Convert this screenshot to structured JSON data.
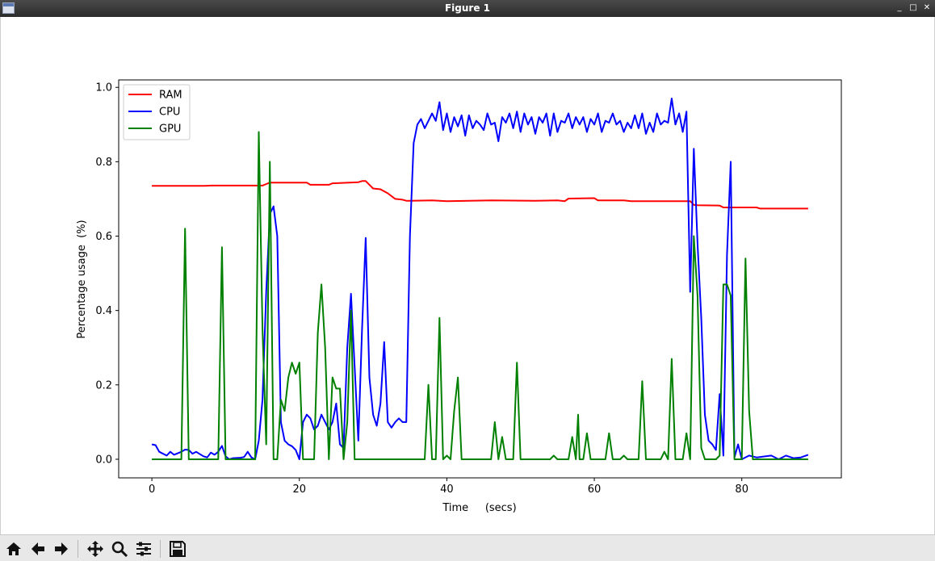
{
  "window": {
    "title": "Figure 1"
  },
  "toolbar": {
    "buttons": [
      {
        "name": "home-icon"
      },
      {
        "name": "back-arrow-icon"
      },
      {
        "name": "forward-arrow-icon"
      },
      {
        "name": "pan-icon"
      },
      {
        "name": "zoom-icon"
      },
      {
        "name": "configure-subplots-icon"
      },
      {
        "name": "save-icon"
      }
    ]
  },
  "colors": {
    "RAM": "#ff0000",
    "CPU": "#0000ff",
    "GPU": "#008000"
  },
  "chart_data": {
    "type": "line",
    "xlabel": "Time     (secs)",
    "ylabel": "Percentage usage  (%)",
    "xlim": [
      -4.5,
      93.5
    ],
    "ylim": [
      -0.05,
      1.02
    ],
    "xticks": [
      0,
      20,
      40,
      60,
      80
    ],
    "yticks": [
      0.0,
      0.2,
      0.4,
      0.6,
      0.8,
      1.0
    ],
    "ytick_labels": [
      "0.0",
      "0.2",
      "0.4",
      "0.6",
      "0.8",
      "1.0"
    ],
    "legend_position": "upper-left",
    "series": [
      {
        "name": "RAM",
        "color": "#ff0000",
        "points": [
          [
            0,
            0.735
          ],
          [
            7,
            0.735
          ],
          [
            8,
            0.736
          ],
          [
            15,
            0.736
          ],
          [
            15.5,
            0.74
          ],
          [
            16,
            0.744
          ],
          [
            21,
            0.744
          ],
          [
            21.5,
            0.738
          ],
          [
            24,
            0.738
          ],
          [
            24.5,
            0.742
          ],
          [
            28,
            0.745
          ],
          [
            28.5,
            0.748
          ],
          [
            29,
            0.748
          ],
          [
            29.5,
            0.738
          ],
          [
            30,
            0.728
          ],
          [
            31,
            0.726
          ],
          [
            32,
            0.715
          ],
          [
            33,
            0.7
          ],
          [
            34,
            0.698
          ],
          [
            34.5,
            0.695
          ],
          [
            35,
            0.695
          ],
          [
            38,
            0.696
          ],
          [
            40,
            0.694
          ],
          [
            46,
            0.696
          ],
          [
            52,
            0.695
          ],
          [
            55,
            0.696
          ],
          [
            56,
            0.694
          ],
          [
            56.5,
            0.701
          ],
          [
            60,
            0.702
          ],
          [
            60.5,
            0.696
          ],
          [
            64,
            0.696
          ],
          [
            65,
            0.694
          ],
          [
            73,
            0.694
          ],
          [
            73.5,
            0.684
          ],
          [
            74,
            0.683
          ],
          [
            77,
            0.682
          ],
          [
            77.5,
            0.677
          ],
          [
            82,
            0.677
          ],
          [
            82.5,
            0.674
          ],
          [
            89,
            0.674
          ]
        ]
      },
      {
        "name": "CPU",
        "color": "#0000ff",
        "points": [
          [
            0,
            0.04
          ],
          [
            0.5,
            0.038
          ],
          [
            1,
            0.02
          ],
          [
            2,
            0.01
          ],
          [
            2.5,
            0.02
          ],
          [
            3,
            0.012
          ],
          [
            4,
            0.02
          ],
          [
            4.5,
            0.026
          ],
          [
            5,
            0.025
          ],
          [
            5.5,
            0.015
          ],
          [
            6,
            0.02
          ],
          [
            7,
            0.008
          ],
          [
            7.5,
            0.005
          ],
          [
            8,
            0.018
          ],
          [
            8.5,
            0.012
          ],
          [
            9,
            0.02
          ],
          [
            9.5,
            0.036
          ],
          [
            10,
            0.008
          ],
          [
            10.5,
            0.0
          ],
          [
            11,
            0.003
          ],
          [
            12,
            0.004
          ],
          [
            12.5,
            0.006
          ],
          [
            13,
            0.02
          ],
          [
            13.5,
            0.005
          ],
          [
            14,
            0.0
          ],
          [
            14.5,
            0.05
          ],
          [
            15,
            0.16
          ],
          [
            15.5,
            0.45
          ],
          [
            16,
            0.66
          ],
          [
            16.5,
            0.68
          ],
          [
            17,
            0.6
          ],
          [
            17.5,
            0.1
          ],
          [
            18,
            0.05
          ],
          [
            18.5,
            0.04
          ],
          [
            19,
            0.035
          ],
          [
            19.5,
            0.025
          ],
          [
            20,
            0.0
          ],
          [
            20.5,
            0.1
          ],
          [
            21,
            0.12
          ],
          [
            21.5,
            0.11
          ],
          [
            22,
            0.08
          ],
          [
            22.5,
            0.09
          ],
          [
            23,
            0.12
          ],
          [
            23.5,
            0.1
          ],
          [
            24,
            0.08
          ],
          [
            24.5,
            0.1
          ],
          [
            25,
            0.15
          ],
          [
            25.5,
            0.04
          ],
          [
            26,
            0.03
          ],
          [
            26.5,
            0.3
          ],
          [
            27,
            0.445
          ],
          [
            27.5,
            0.25
          ],
          [
            28,
            0.05
          ],
          [
            28.5,
            0.35
          ],
          [
            29,
            0.595
          ],
          [
            29.5,
            0.22
          ],
          [
            30,
            0.12
          ],
          [
            30.5,
            0.09
          ],
          [
            31,
            0.15
          ],
          [
            31.5,
            0.315
          ],
          [
            32,
            0.1
          ],
          [
            32.5,
            0.085
          ],
          [
            33,
            0.1
          ],
          [
            33.5,
            0.11
          ],
          [
            34,
            0.1
          ],
          [
            34.5,
            0.1
          ],
          [
            35,
            0.6
          ],
          [
            35.5,
            0.85
          ],
          [
            36,
            0.9
          ],
          [
            36.5,
            0.915
          ],
          [
            37,
            0.89
          ],
          [
            37.5,
            0.91
          ],
          [
            38,
            0.93
          ],
          [
            38.5,
            0.91
          ],
          [
            39,
            0.96
          ],
          [
            39.5,
            0.885
          ],
          [
            40,
            0.93
          ],
          [
            40.5,
            0.88
          ],
          [
            41,
            0.92
          ],
          [
            41.5,
            0.895
          ],
          [
            42,
            0.925
          ],
          [
            42.5,
            0.87
          ],
          [
            43,
            0.925
          ],
          [
            43.5,
            0.89
          ],
          [
            44,
            0.91
          ],
          [
            44.5,
            0.9
          ],
          [
            45,
            0.885
          ],
          [
            45.5,
            0.93
          ],
          [
            46,
            0.9
          ],
          [
            46.5,
            0.905
          ],
          [
            47,
            0.855
          ],
          [
            47.5,
            0.92
          ],
          [
            48,
            0.905
          ],
          [
            48.5,
            0.93
          ],
          [
            49,
            0.89
          ],
          [
            49.5,
            0.935
          ],
          [
            50,
            0.88
          ],
          [
            50.5,
            0.93
          ],
          [
            51,
            0.9
          ],
          [
            51.5,
            0.92
          ],
          [
            52,
            0.875
          ],
          [
            52.5,
            0.92
          ],
          [
            53,
            0.905
          ],
          [
            53.5,
            0.93
          ],
          [
            54,
            0.87
          ],
          [
            54.5,
            0.93
          ],
          [
            55,
            0.88
          ],
          [
            55.5,
            0.91
          ],
          [
            56,
            0.905
          ],
          [
            56.5,
            0.93
          ],
          [
            57,
            0.89
          ],
          [
            57.5,
            0.92
          ],
          [
            58,
            0.9
          ],
          [
            58.5,
            0.92
          ],
          [
            59,
            0.88
          ],
          [
            59.5,
            0.915
          ],
          [
            60,
            0.9
          ],
          [
            60.5,
            0.93
          ],
          [
            61,
            0.88
          ],
          [
            61.5,
            0.91
          ],
          [
            62,
            0.905
          ],
          [
            62.5,
            0.93
          ],
          [
            63,
            0.9
          ],
          [
            63.5,
            0.91
          ],
          [
            64,
            0.88
          ],
          [
            64.5,
            0.905
          ],
          [
            65,
            0.89
          ],
          [
            65.5,
            0.925
          ],
          [
            66,
            0.89
          ],
          [
            66.5,
            0.93
          ],
          [
            67,
            0.875
          ],
          [
            67.5,
            0.905
          ],
          [
            68,
            0.88
          ],
          [
            68.5,
            0.93
          ],
          [
            69,
            0.9
          ],
          [
            69.5,
            0.91
          ],
          [
            70,
            0.905
          ],
          [
            70.5,
            0.97
          ],
          [
            71,
            0.9
          ],
          [
            71.5,
            0.93
          ],
          [
            72,
            0.88
          ],
          [
            72.5,
            0.935
          ],
          [
            73,
            0.45
          ],
          [
            73.5,
            0.835
          ],
          [
            74,
            0.58
          ],
          [
            74.5,
            0.38
          ],
          [
            75,
            0.12
          ],
          [
            75.5,
            0.05
          ],
          [
            76,
            0.04
          ],
          [
            76.5,
            0.025
          ],
          [
            77,
            0.175
          ],
          [
            77.5,
            0.01
          ],
          [
            78,
            0.55
          ],
          [
            78.5,
            0.8
          ],
          [
            79,
            0.005
          ],
          [
            79.5,
            0.04
          ],
          [
            80,
            0.0
          ],
          [
            81,
            0.01
          ],
          [
            82,
            0.005
          ],
          [
            84,
            0.01
          ],
          [
            85,
            0.0
          ],
          [
            86,
            0.01
          ],
          [
            87,
            0.003
          ],
          [
            88,
            0.005
          ],
          [
            89,
            0.012
          ]
        ]
      },
      {
        "name": "GPU",
        "color": "#008000",
        "points": [
          [
            0,
            0.0
          ],
          [
            4,
            0.0
          ],
          [
            4.5,
            0.62
          ],
          [
            5,
            0.0
          ],
          [
            9,
            0.0
          ],
          [
            9.5,
            0.57
          ],
          [
            10,
            0.0
          ],
          [
            14,
            0.0
          ],
          [
            14.5,
            0.88
          ],
          [
            15,
            0.35
          ],
          [
            15.5,
            0.04
          ],
          [
            16,
            0.8
          ],
          [
            16.5,
            0.0
          ],
          [
            17,
            0.0
          ],
          [
            17.5,
            0.16
          ],
          [
            18,
            0.13
          ],
          [
            18.5,
            0.22
          ],
          [
            19,
            0.26
          ],
          [
            19.5,
            0.23
          ],
          [
            20,
            0.26
          ],
          [
            20.5,
            0.0
          ],
          [
            22,
            0.0
          ],
          [
            22.5,
            0.34
          ],
          [
            23,
            0.47
          ],
          [
            23.5,
            0.3
          ],
          [
            24,
            0.0
          ],
          [
            24.5,
            0.22
          ],
          [
            25,
            0.19
          ],
          [
            25.5,
            0.19
          ],
          [
            26,
            0.0
          ],
          [
            26.5,
            0.1
          ],
          [
            27,
            0.4
          ],
          [
            27.5,
            0.0
          ],
          [
            37,
            0.0
          ],
          [
            37.5,
            0.2
          ],
          [
            38,
            0.0
          ],
          [
            38.5,
            0.0
          ],
          [
            39,
            0.38
          ],
          [
            39.5,
            0.0
          ],
          [
            40,
            0.01
          ],
          [
            40.5,
            0.0
          ],
          [
            41,
            0.13
          ],
          [
            41.5,
            0.22
          ],
          [
            42,
            0.0
          ],
          [
            46,
            0.0
          ],
          [
            46.5,
            0.1
          ],
          [
            47,
            0.0
          ],
          [
            47.5,
            0.06
          ],
          [
            48,
            0.0
          ],
          [
            49,
            0.0
          ],
          [
            49.5,
            0.26
          ],
          [
            50,
            0.0
          ],
          [
            54,
            0.0
          ],
          [
            54.5,
            0.01
          ],
          [
            55,
            0.0
          ],
          [
            56.5,
            0.0
          ],
          [
            57,
            0.06
          ],
          [
            57.5,
            0.0
          ],
          [
            57.8,
            0.12
          ],
          [
            58,
            0.0
          ],
          [
            58.5,
            0.0
          ],
          [
            59,
            0.07
          ],
          [
            59.5,
            0.0
          ],
          [
            61.5,
            0.0
          ],
          [
            62,
            0.07
          ],
          [
            62.5,
            0.0
          ],
          [
            63.5,
            0.0
          ],
          [
            64,
            0.01
          ],
          [
            64.5,
            0.0
          ],
          [
            66,
            0.0
          ],
          [
            66.5,
            0.21
          ],
          [
            67,
            0.0
          ],
          [
            69,
            0.0
          ],
          [
            69.5,
            0.02
          ],
          [
            70,
            0.0
          ],
          [
            70.5,
            0.27
          ],
          [
            71,
            0.0
          ],
          [
            72,
            0.0
          ],
          [
            72.5,
            0.07
          ],
          [
            73,
            0.0
          ],
          [
            73.5,
            0.6
          ],
          [
            74,
            0.44
          ],
          [
            74.5,
            0.03
          ],
          [
            75,
            0.0
          ],
          [
            76.5,
            0.0
          ],
          [
            77,
            0.01
          ],
          [
            77.5,
            0.47
          ],
          [
            78,
            0.47
          ],
          [
            78.5,
            0.44
          ],
          [
            79,
            0.0
          ],
          [
            80,
            0.0
          ],
          [
            80.5,
            0.54
          ],
          [
            81,
            0.13
          ],
          [
            81.5,
            0.0
          ],
          [
            89,
            0.0
          ]
        ]
      }
    ]
  }
}
